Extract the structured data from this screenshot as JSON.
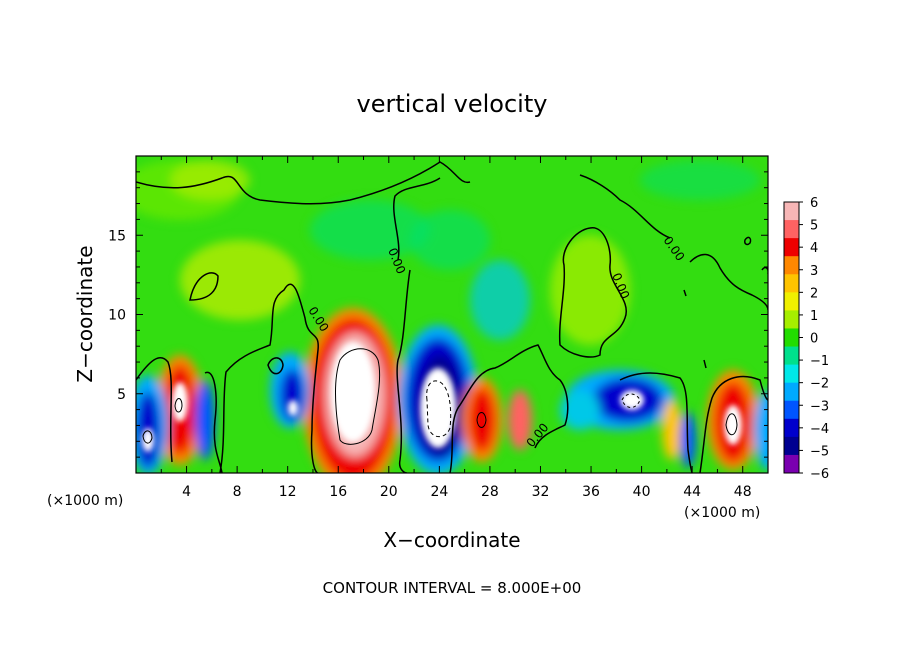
{
  "chart_data": {
    "type": "heatmap",
    "title": "vertical velocity",
    "xlabel": "X−coordinate",
    "ylabel": "Z−coordinate",
    "x_unit_left": "(×1000 m)",
    "x_unit_right": "(×1000 m)",
    "footer": "CONTOUR INTERVAL = 8.000E+00",
    "xlim": [
      0,
      50
    ],
    "ylim": [
      0,
      20
    ],
    "x_ticks": [
      "4",
      "8",
      "12",
      "16",
      "20",
      "24",
      "28",
      "32",
      "36",
      "40",
      "44",
      "48"
    ],
    "y_ticks": [
      "5",
      "10",
      "15"
    ],
    "colorbar": {
      "labels": [
        "6",
        "5",
        "4",
        "3",
        "2",
        "1",
        "0",
        "−1",
        "−2",
        "−3",
        "−4",
        "−5",
        "−6"
      ],
      "colors": [
        "#f7b6b6",
        "#ff6262",
        "#ee0000",
        "#ff8800",
        "#ffc400",
        "#f0f000",
        "#a6ee00",
        "#22dd00",
        "#00e08c",
        "#00e8e8",
        "#00aaff",
        "#0055ff",
        "#0000cc",
        "#000090",
        "#7a00b0"
      ]
    },
    "contour_labels": [
      "0.00",
      "0.00",
      "0.00",
      "0.00",
      "0.00"
    ],
    "features": [
      {
        "x": 17.5,
        "z": 5.0,
        "value": 8
      },
      {
        "x": 24.5,
        "z": 3.5,
        "value": -8
      },
      {
        "x": 3.5,
        "z": 4.0,
        "value": 6
      },
      {
        "x": 47.0,
        "z": 3.5,
        "value": 6
      },
      {
        "x": 1.0,
        "z": 2.5,
        "value": -6
      },
      {
        "x": 38.5,
        "z": 4.5,
        "value": -6
      }
    ]
  }
}
